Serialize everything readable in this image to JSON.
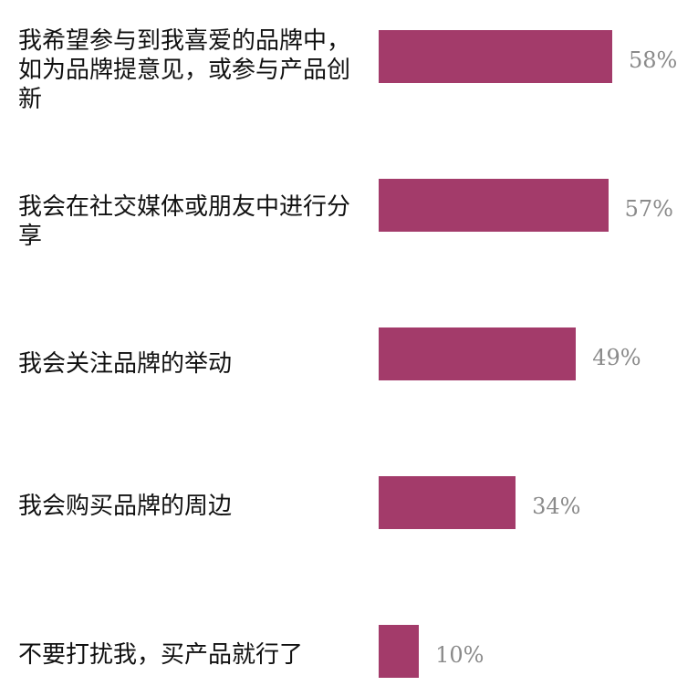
{
  "chart_data": {
    "type": "bar",
    "orientation": "horizontal",
    "categories": [
      "我希望参与到我喜爱的品牌中，如为品牌提意见，或参与产品创新",
      "我会在社交媒体或朋友中进行分享",
      "我会关注品牌的举动",
      "我会购买品牌的周边",
      "不要打扰我，买产品就行了"
    ],
    "values": [
      58,
      57,
      49,
      34,
      10
    ],
    "value_labels": [
      "58%",
      "57%",
      "49%",
      "34%",
      "10%"
    ],
    "unit": "%",
    "xlim": [
      0,
      100
    ],
    "grid": false,
    "title": "",
    "xlabel": "",
    "ylabel": "",
    "colors": {
      "bar": "#a33b6a",
      "value_label": "#8a8a8a",
      "category_label": "#111111"
    }
  }
}
